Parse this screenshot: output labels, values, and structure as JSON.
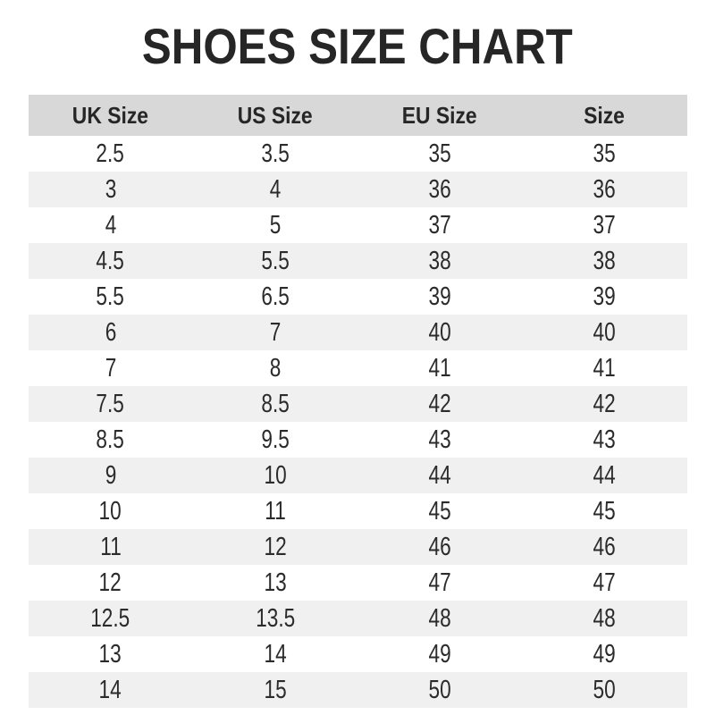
{
  "title": "SHOES SIZE CHART",
  "colors": {
    "header_bg": "#d8d8d8",
    "stripe_bg": "#f0f0f0",
    "title_text": "#262626",
    "cell_text": "#2b2b2b"
  },
  "chart_data": {
    "type": "table",
    "title": "SHOES SIZE CHART",
    "columns": [
      "UK Size",
      "US Size",
      "EU Size",
      "Size"
    ],
    "rows": [
      [
        "2.5",
        "3.5",
        "35",
        "35"
      ],
      [
        "3",
        "4",
        "36",
        "36"
      ],
      [
        "4",
        "5",
        "37",
        "37"
      ],
      [
        "4.5",
        "5.5",
        "38",
        "38"
      ],
      [
        "5.5",
        "6.5",
        "39",
        "39"
      ],
      [
        "6",
        "7",
        "40",
        "40"
      ],
      [
        "7",
        "8",
        "41",
        "41"
      ],
      [
        "7.5",
        "8.5",
        "42",
        "42"
      ],
      [
        "8.5",
        "9.5",
        "43",
        "43"
      ],
      [
        "9",
        "10",
        "44",
        "44"
      ],
      [
        "10",
        "11",
        "45",
        "45"
      ],
      [
        "11",
        "12",
        "46",
        "46"
      ],
      [
        "12",
        "13",
        "47",
        "47"
      ],
      [
        "12.5",
        "13.5",
        "48",
        "48"
      ],
      [
        "13",
        "14",
        "49",
        "49"
      ],
      [
        "14",
        "15",
        "50",
        "50"
      ]
    ],
    "layout": {
      "header_background": "#d8d8d8",
      "zebra_stripe_background": "#f0f0f0",
      "stripe_pattern": "even rows shaded, starting from second data row",
      "grid": "off",
      "text_align": "center"
    }
  }
}
